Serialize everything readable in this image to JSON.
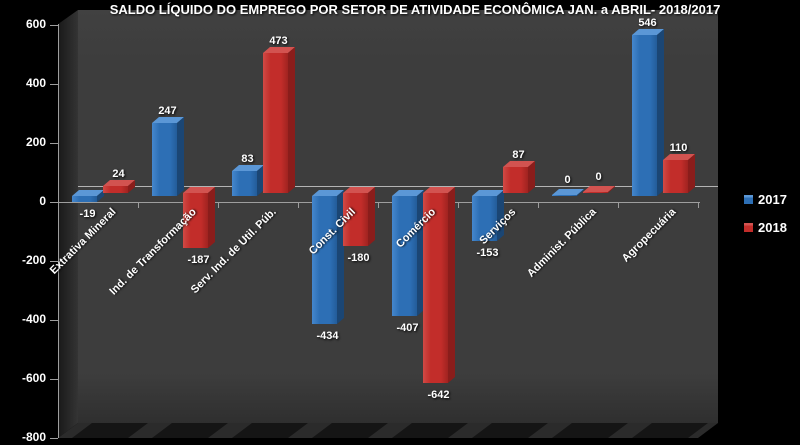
{
  "title": "SALDO LÍQUIDO DO EMPREGO POR SETOR DE ATIVIDADE ECONÔMICA JAN. a ABRIL- 2018/2017",
  "colors": {
    "background": "#000000",
    "wall": "#3d3d3d",
    "gridline": "#c9c9c9",
    "axis": "#9e9e9e",
    "label": "#ffffff",
    "series": [
      {
        "name": "2017",
        "front": "#2d6fb5",
        "hi": "#4587cd",
        "lo": "#235c99",
        "top": "#5b97d6",
        "side": "#1b4674"
      },
      {
        "name": "2018",
        "front": "#c22d2a",
        "hi": "#d14a45",
        "lo": "#a02320",
        "top": "#d25350",
        "side": "#8a1d1b"
      }
    ]
  },
  "legend": [
    {
      "name": "2017",
      "color": "#2d6fb5"
    },
    {
      "name": "2018",
      "color": "#c22d2a"
    }
  ],
  "chart_data": {
    "type": "bar",
    "style": "3d-clustered-column",
    "title": "SALDO LÍQUIDO DO EMPREGO POR SETOR DE ATIVIDADE ECONÔMICA JAN. a ABRIL- 2018/2017",
    "categories": [
      "Extrativa Mineral",
      "Ind. de Transformação",
      "Serv. Ind. de Util. Púb.",
      "Const. Civil",
      "Comércio",
      "Serviços",
      "Administ. Pública",
      "Agropecuária"
    ],
    "series": [
      {
        "name": "2017",
        "values": [
          -19,
          247,
          83,
          -434,
          -407,
          -153,
          0,
          546
        ]
      },
      {
        "name": "2018",
        "values": [
          24,
          -187,
          473,
          -180,
          -642,
          87,
          0,
          110
        ]
      }
    ],
    "xlabel": "",
    "ylabel": "",
    "ylim": [
      -800,
      600
    ],
    "yticks": [
      600,
      400,
      200,
      0,
      -200,
      -400,
      -600,
      -800
    ],
    "grid": "zero-line-only",
    "legend_position": "right",
    "data_labels": true,
    "background": "black"
  }
}
